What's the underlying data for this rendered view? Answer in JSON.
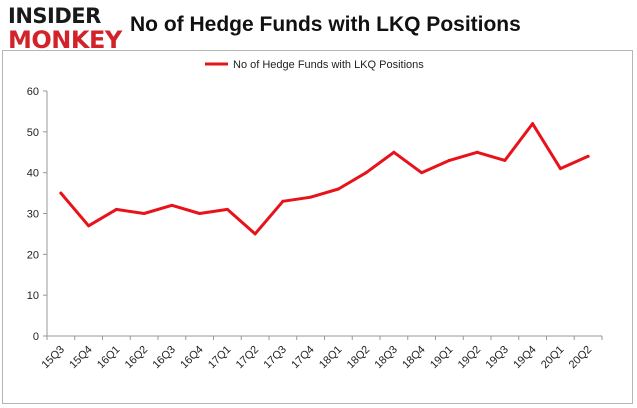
{
  "logo": {
    "line1": "INSIDER",
    "line2": "MONKEY"
  },
  "colors": {
    "series": "#e8131a",
    "frame": "#b5b5b5",
    "text": "#222222",
    "brand_red": "#d2232a"
  },
  "chart_data": {
    "type": "line",
    "title": "No of Hedge Funds with LKQ Positions",
    "xlabel": "",
    "ylabel": "",
    "legend_position": "top-center",
    "grid": false,
    "ylim": [
      0,
      60
    ],
    "yticks": [
      0,
      10,
      20,
      30,
      40,
      50,
      60
    ],
    "categories": [
      "15Q3",
      "15Q4",
      "16Q1",
      "16Q2",
      "16Q3",
      "16Q4",
      "17Q1",
      "17Q2",
      "17Q3",
      "17Q4",
      "18Q1",
      "18Q2",
      "18Q3",
      "18Q4",
      "19Q1",
      "19Q2",
      "19Q3",
      "19Q4",
      "20Q1",
      "20Q2"
    ],
    "series": [
      {
        "name": "No of Hedge Funds with LKQ Positions",
        "values": [
          35,
          27,
          31,
          30,
          32,
          30,
          31,
          25,
          33,
          34,
          36,
          40,
          45,
          40,
          43,
          45,
          43,
          52,
          41,
          44
        ]
      }
    ]
  }
}
